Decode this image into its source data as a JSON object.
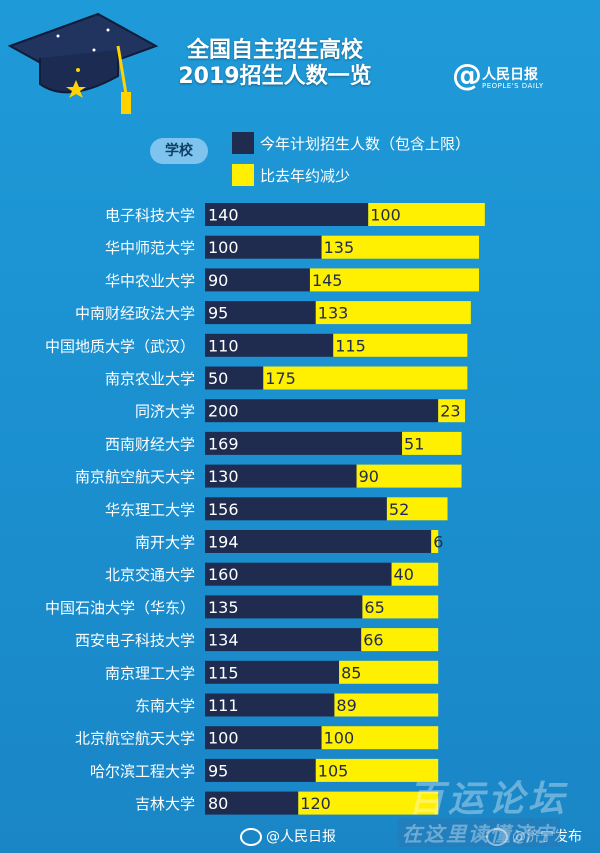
{
  "header": {
    "title_line1": "全国自主招生高校",
    "title_line2": "2019招生人数一览",
    "logo_name": "人民日报",
    "logo_sub": "PEOPLE'S DAILY"
  },
  "legend": {
    "school_label": "学校",
    "dark_label": "今年计划招生人数（包含上限）",
    "yellow_label": "比去年约减少"
  },
  "colors": {
    "dark_bar": "#1f2c4f",
    "yellow_bar": "#ffef00",
    "background": "#1f9ad8"
  },
  "chart_data": {
    "type": "bar",
    "orientation": "horizontal",
    "stacked": true,
    "categories": [
      "电子科技大学",
      "华中师范大学",
      "华中农业大学",
      "中南财经政法大学",
      "中国地质大学（武汉）",
      "南京农业大学",
      "同济大学",
      "西南财经大学",
      "南京航空航天大学",
      "华东理工大学",
      "南开大学",
      "北京交通大学",
      "中国石油大学（华东）",
      "西安电子科技大学",
      "南京理工大学",
      "东南大学",
      "北京航空航天大学",
      "哈尔滨工程大学",
      "吉林大学"
    ],
    "series": [
      {
        "name": "今年计划招生人数（包含上限）",
        "color": "#1f2c4f",
        "values": [
          140,
          100,
          90,
          95,
          110,
          50,
          200,
          169,
          130,
          156,
          194,
          160,
          135,
          134,
          115,
          111,
          100,
          95,
          80
        ]
      },
      {
        "name": "比去年约减少",
        "color": "#ffef00",
        "values": [
          100,
          135,
          145,
          133,
          115,
          175,
          23,
          51,
          90,
          52,
          6,
          40,
          65,
          66,
          85,
          89,
          100,
          105,
          120
        ]
      }
    ]
  },
  "footer": {
    "left": "@人民日报",
    "right": "@济宁发布"
  },
  "watermark": {
    "line1": "百运论坛",
    "line2": "在这里读懂济宁"
  }
}
